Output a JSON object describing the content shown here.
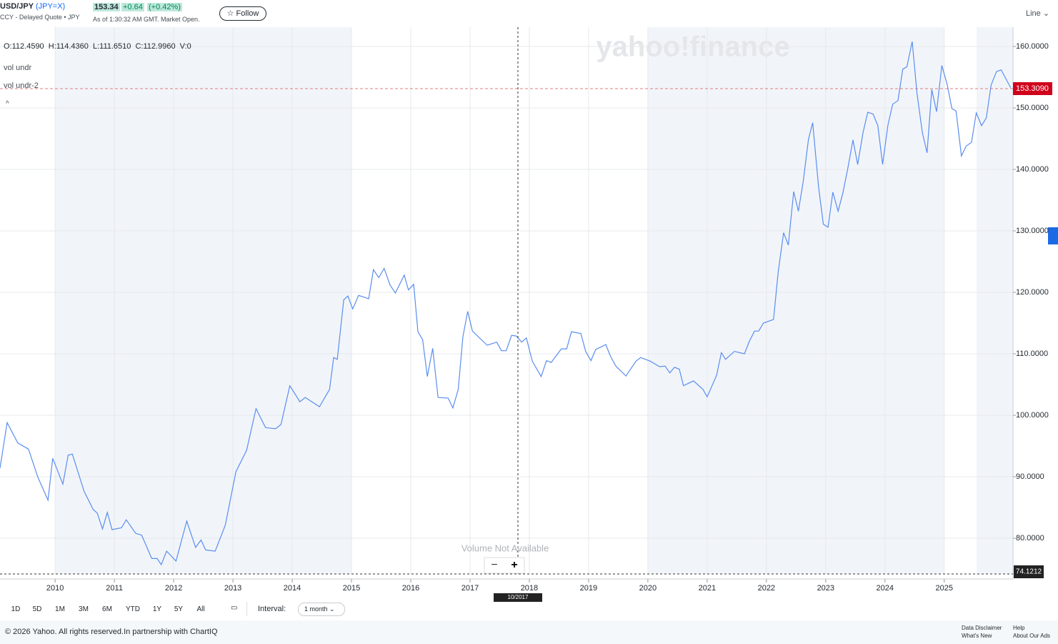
{
  "header": {
    "symbol": "USD/JPY",
    "ticker": "(JPY=X)",
    "subtitle": "CCY - Delayed Quote • JPY",
    "price": "153.34",
    "change": "+0.64",
    "change_pct": "(+0.42%)",
    "as_of": "As of 1:30:32 AM GMT. Market Open.",
    "follow": "☆ Follow",
    "chart_style": "Line"
  },
  "overlay": {
    "ohlc": "O:112.4590  H:114.4360  L:111.6510  C:112.9960  V:0",
    "studies": [
      "vol undr",
      "vol undr-2"
    ],
    "last_price": "153.3090",
    "crosshair_price": "74.1212",
    "crosshair_date": "10/2017",
    "volume_note": "Volume Not Available",
    "watermark": "yahoo!finance"
  },
  "chart_data": {
    "type": "line",
    "color": "#5b8def",
    "x": [
      2009.07,
      2009.19,
      2009.37,
      2009.55,
      2009.71,
      2009.88,
      2009.96,
      2010.13,
      2010.22,
      2010.29,
      2010.49,
      2010.64,
      2010.71,
      2010.8,
      2010.88,
      2010.96,
      2011.12,
      2011.2,
      2011.36,
      2011.46,
      2011.63,
      2011.72,
      2011.79,
      2011.88,
      2012.04,
      2012.22,
      2012.37,
      2012.46,
      2012.54,
      2012.7,
      2012.87,
      2013.05,
      2013.23,
      2013.39,
      2013.55,
      2013.72,
      2013.81,
      2013.96,
      2014.13,
      2014.22,
      2014.46,
      2014.63,
      2014.7,
      2014.76,
      2014.87,
      2014.94,
      2015.02,
      2015.12,
      2015.29,
      2015.37,
      2015.46,
      2015.55,
      2015.65,
      2015.74,
      2015.89,
      2015.96,
      2016.05,
      2016.12,
      2016.2,
      2016.28,
      2016.37,
      2016.46,
      2016.63,
      2016.71,
      2016.8,
      2016.88,
      2016.96,
      2017.04,
      2017.29,
      2017.45,
      2017.53,
      2017.61,
      2017.7,
      2017.78,
      2017.87,
      2017.95,
      2018.05,
      2018.2,
      2018.29,
      2018.37,
      2018.54,
      2018.63,
      2018.71,
      2018.87,
      2018.95,
      2019.04,
      2019.12,
      2019.29,
      2019.37,
      2019.46,
      2019.63,
      2019.8,
      2019.88,
      2020.04,
      2020.2,
      2020.29,
      2020.37,
      2020.45,
      2020.53,
      2020.6,
      2020.77,
      2020.93,
      2021.0,
      2021.16,
      2021.24,
      2021.31,
      2021.46,
      2021.63,
      2021.71,
      2021.8,
      2021.87,
      2021.95,
      2022.12,
      2022.2,
      2022.29,
      2022.37,
      2022.46,
      2022.54,
      2022.62,
      2022.71,
      2022.78,
      2022.88,
      2022.96,
      2023.04,
      2023.12,
      2023.21,
      2023.29,
      2023.37,
      2023.46,
      2023.54,
      2023.63,
      2023.71,
      2023.8,
      2023.88,
      2023.96,
      2024.05,
      2024.13,
      2024.22,
      2024.3,
      2024.37,
      2024.46,
      2024.54,
      2024.63,
      2024.71,
      2024.79,
      2024.87,
      2024.96,
      2025.05,
      2025.13,
      2025.2,
      2025.29,
      2025.37,
      2025.46,
      2025.54,
      2025.63,
      2025.71,
      2025.79,
      2025.88,
      2025.96,
      2026.12
    ],
    "values": [
      91.4,
      98.8,
      95.5,
      94.5,
      89.9,
      86.2,
      93.0,
      88.8,
      93.5,
      93.7,
      87.6,
      84.7,
      84.1,
      81.5,
      84.2,
      81.4,
      81.7,
      83.0,
      80.8,
      80.5,
      76.7,
      76.7,
      75.7,
      77.9,
      76.3,
      82.8,
      78.5,
      79.7,
      78.1,
      77.9,
      82.1,
      90.8,
      94.3,
      101.1,
      98.0,
      97.8,
      98.5,
      104.8,
      102.2,
      102.9,
      101.4,
      104.2,
      109.4,
      109.1,
      118.8,
      119.4,
      117.3,
      119.5,
      118.95,
      123.7,
      122.4,
      123.9,
      121.2,
      119.9,
      122.8,
      120.4,
      121.3,
      113.6,
      112.3,
      106.3,
      110.9,
      102.9,
      102.8,
      101.2,
      104.2,
      112.8,
      116.9,
      113.7,
      111.4,
      111.9,
      110.5,
      110.5,
      113.0,
      112.9,
      111.9,
      112.6,
      108.8,
      106.3,
      108.9,
      108.6,
      110.8,
      110.8,
      113.6,
      113.3,
      110.4,
      108.9,
      110.7,
      111.5,
      109.6,
      108.0,
      106.4,
      108.8,
      109.4,
      108.8,
      107.9,
      108.0,
      106.9,
      107.8,
      107.5,
      104.8,
      105.6,
      104.2,
      103.0,
      106.5,
      110.2,
      109.1,
      110.4,
      110.0,
      112.0,
      113.7,
      113.7,
      115.0,
      115.6,
      123.4,
      129.7,
      127.7,
      136.4,
      133.2,
      138.0,
      144.9,
      147.6,
      137.1,
      131.1,
      130.6,
      136.3,
      133.2,
      136.2,
      140.0,
      144.8,
      140.8,
      146.0,
      149.3,
      149.0,
      147.1,
      140.8,
      147.2,
      150.6,
      151.2,
      156.3,
      156.7,
      160.8,
      152.4,
      146.0,
      142.7,
      153.0,
      149.4,
      156.9,
      153.8,
      149.9,
      149.5,
      142.2,
      143.8,
      144.4,
      149.2,
      147.1,
      148.4,
      153.7,
      155.9,
      156.2,
      153.3
    ],
    "xlim": [
      2009.07,
      2026.16
    ],
    "xticks": [
      2010,
      2011,
      2012,
      2013,
      2014,
      2015,
      2016,
      2017,
      2018,
      2019,
      2020,
      2021,
      2022,
      2023,
      2024,
      2025
    ],
    "ylim": [
      74.19,
      163.14
    ],
    "yticks": [
      {
        "value": 80,
        "label": "80.0000"
      },
      {
        "value": 90,
        "label": "90.0000"
      },
      {
        "value": 100,
        "label": "100.0000"
      },
      {
        "value": 110,
        "label": "110.0000"
      },
      {
        "value": 120,
        "label": "120.0000"
      },
      {
        "value": 130,
        "label": "130.0000"
      },
      {
        "value": 140,
        "label": "140.0000"
      },
      {
        "value": 150,
        "label": "150.0000"
      },
      {
        "value": 160,
        "label": "160.0000"
      }
    ],
    "grid": true
  },
  "controls": {
    "ranges": [
      "1D",
      "5D",
      "1M",
      "3M",
      "6M",
      "YTD",
      "1Y",
      "5Y",
      "All"
    ],
    "interval_label": "Interval:",
    "interval": "1 month"
  },
  "footer": {
    "copyright": "© 2026 Yahoo. All rights reserved.In partnership with ChartIQ",
    "links": [
      "Data Disclaimer",
      "What's New",
      "Help",
      "About Our Ads"
    ]
  }
}
